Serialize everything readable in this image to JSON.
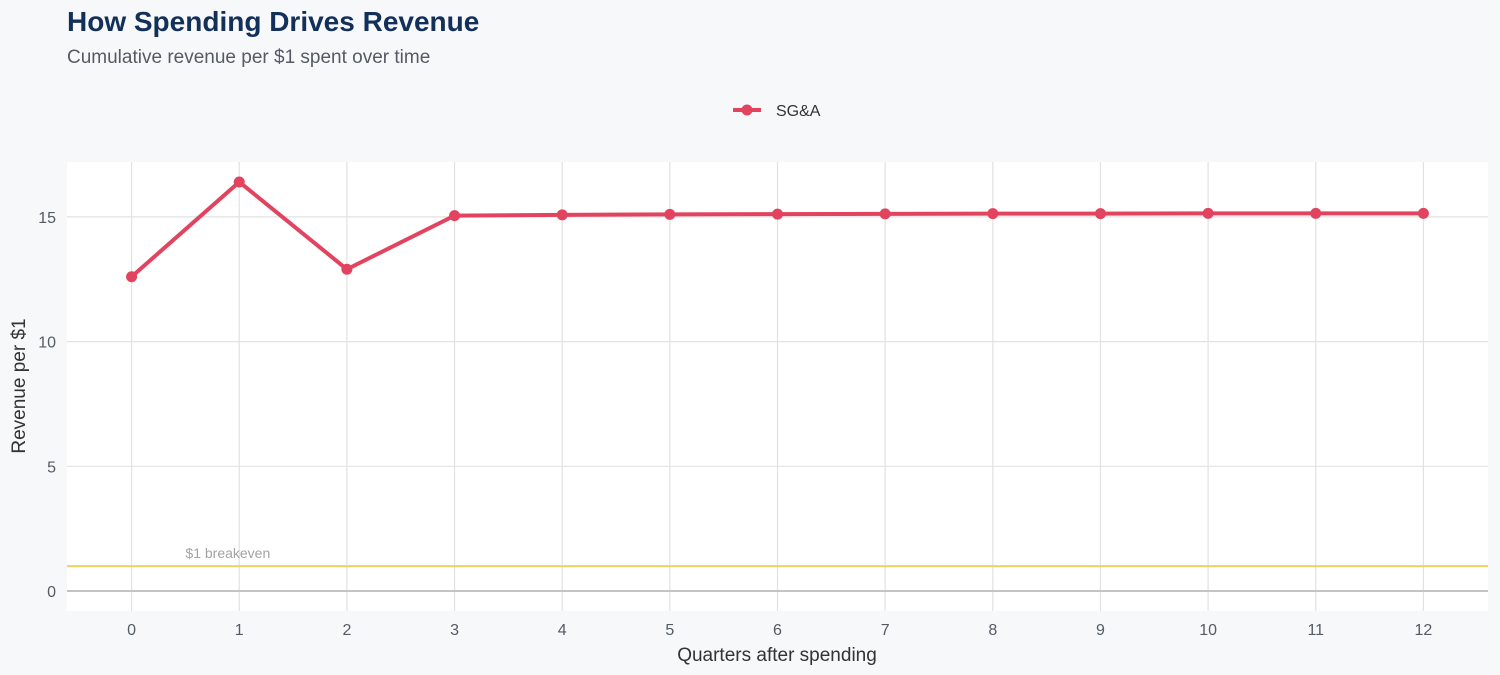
{
  "header": {
    "title": "How Spending Drives Revenue",
    "subtitle": "Cumulative revenue per $1 spent over time"
  },
  "colors": {
    "series": "#e2435f",
    "breakeven": "#f2d060",
    "grid": "#e2e2e2",
    "zero_line": "#c4c4c4",
    "panel": "#ffffff"
  },
  "chart_data": {
    "type": "line",
    "title": "How Spending Drives Revenue",
    "subtitle": "Cumulative revenue per $1 spent over time",
    "xlabel": "Quarters after spending",
    "ylabel": "Revenue per $1",
    "x": [
      0,
      1,
      2,
      3,
      4,
      5,
      6,
      7,
      8,
      9,
      10,
      11,
      12
    ],
    "x_tick_labels": [
      "0",
      "1",
      "2",
      "3",
      "4",
      "5",
      "6",
      "7",
      "8",
      "9",
      "10",
      "11",
      "12"
    ],
    "xlim": [
      -0.6,
      12.6
    ],
    "ylim": [
      -0.8,
      17.2
    ],
    "y_ticks": [
      0,
      5,
      10,
      15
    ],
    "y_tick_labels": [
      "0",
      "5",
      "10",
      "15"
    ],
    "grid": true,
    "legend_position": "top-center",
    "series": [
      {
        "name": "SG&A",
        "values": [
          12.6,
          16.4,
          12.9,
          15.05,
          15.08,
          15.1,
          15.11,
          15.12,
          15.13,
          15.13,
          15.14,
          15.14,
          15.14
        ]
      }
    ],
    "annotations": [
      {
        "label": "$1 breakeven",
        "y": 1,
        "x": 0.5
      }
    ]
  }
}
